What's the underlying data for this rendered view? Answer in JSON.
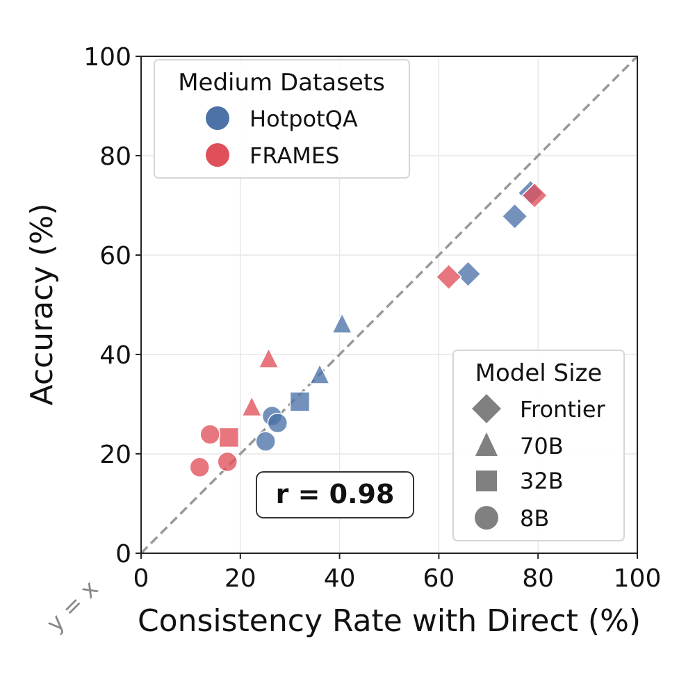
{
  "chart_data": {
    "type": "scatter",
    "title": "",
    "xlabel": "Consistency Rate with Direct (%)",
    "ylabel": "Accuracy (%)",
    "xlim": [
      0,
      100
    ],
    "ylim": [
      0,
      100
    ],
    "xticks": [
      "0",
      "20",
      "40",
      "60",
      "80",
      "100"
    ],
    "yticks": [
      "0",
      "20",
      "40",
      "60",
      "80",
      "100"
    ],
    "grid": true,
    "reference_line": {
      "label": "y = x",
      "slope": 1,
      "intercept": 0
    },
    "annotation": "r = 0.98",
    "dataset_legend": {
      "title": "Medium Datasets",
      "placement": "top-left",
      "entries": [
        {
          "name": "HotpotQA",
          "color": "#4c72a8"
        },
        {
          "name": "FRAMES",
          "color": "#e0505a"
        }
      ]
    },
    "size_legend": {
      "title": "Model Size",
      "placement": "bottom-right",
      "entries": [
        {
          "name": "Frontier",
          "marker": "diamond"
        },
        {
          "name": "70B",
          "marker": "triangle"
        },
        {
          "name": "32B",
          "marker": "square"
        },
        {
          "name": "8B",
          "marker": "circle"
        }
      ]
    },
    "series": [
      {
        "name": "HotpotQA",
        "color": "#4c72a8",
        "points": [
          {
            "x": 78.5,
            "y": 72.5,
            "size": "Frontier"
          },
          {
            "x": 75.3,
            "y": 67.8,
            "size": "Frontier"
          },
          {
            "x": 65.9,
            "y": 56.2,
            "size": "Frontier"
          },
          {
            "x": 40.5,
            "y": 46.0,
            "size": "70B"
          },
          {
            "x": 36.0,
            "y": 35.8,
            "size": "70B"
          },
          {
            "x": 32.0,
            "y": 30.5,
            "size": "32B"
          },
          {
            "x": 26.4,
            "y": 27.6,
            "size": "8B"
          },
          {
            "x": 27.5,
            "y": 26.2,
            "size": "8B"
          },
          {
            "x": 25.1,
            "y": 22.5,
            "size": "8B"
          }
        ]
      },
      {
        "name": "FRAMES",
        "color": "#e0505a",
        "points": [
          {
            "x": 79.3,
            "y": 72.0,
            "size": "Frontier"
          },
          {
            "x": 62.0,
            "y": 55.6,
            "size": "Frontier"
          },
          {
            "x": 25.7,
            "y": 39.0,
            "size": "70B"
          },
          {
            "x": 22.3,
            "y": 29.3,
            "size": "70B"
          },
          {
            "x": 17.7,
            "y": 23.3,
            "size": "32B"
          },
          {
            "x": 13.9,
            "y": 23.9,
            "size": "8B"
          },
          {
            "x": 17.4,
            "y": 18.4,
            "size": "8B"
          },
          {
            "x": 11.8,
            "y": 17.3,
            "size": "8B"
          }
        ]
      }
    ]
  }
}
